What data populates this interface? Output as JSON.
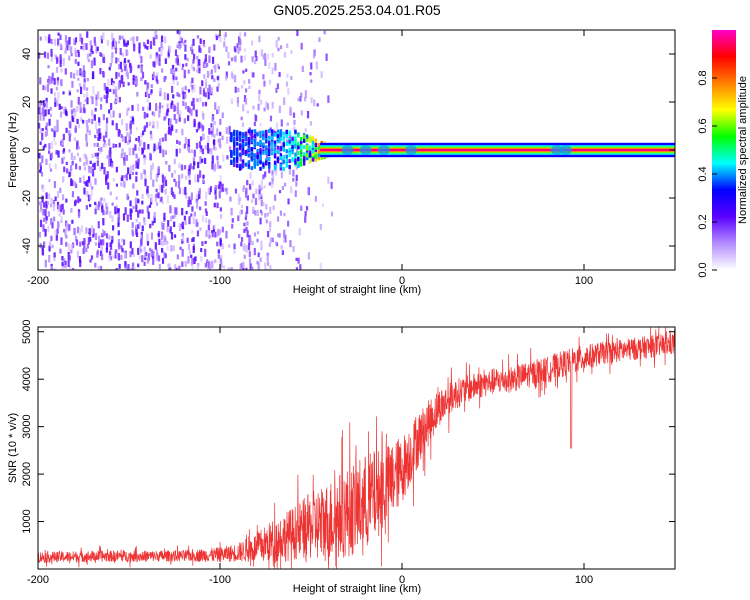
{
  "title": "GN05.2025.253.04.01.R05",
  "chart_data": [
    {
      "type": "heatmap",
      "name": "spectrogram",
      "xlabel": "Height of straight line (km)",
      "ylabel": "Frequency (Hz)",
      "xlim": [
        -200,
        150
      ],
      "ylim": [
        -50,
        50
      ],
      "x_ticks": [
        -200,
        -100,
        0,
        100
      ],
      "y_ticks": [
        -40,
        -20,
        0,
        20,
        40
      ],
      "colorbar": {
        "label": "Normalized spectral amplitude",
        "range": [
          0,
          1
        ],
        "ticks": [
          0.0,
          0.2,
          0.4,
          0.6,
          0.8
        ],
        "tick_labels": [
          "0.0",
          "0.2",
          "0.4",
          "0.6",
          "0.8"
        ],
        "stops": [
          "#ffffff",
          "#b48cff",
          "#5a00ff",
          "#0000ff",
          "#00ffff",
          "#00ff00",
          "#ffff00",
          "#ff8000",
          "#ff0000",
          "#ff00c8"
        ]
      },
      "description_points": [
        {
          "x": -200,
          "spread_hz": 50,
          "max_amp": 0.2
        },
        {
          "x": -100,
          "spread_hz": 50,
          "max_amp": 0.2
        },
        {
          "x": -95,
          "spread_hz": 8,
          "max_amp": 0.35
        },
        {
          "x": -60,
          "spread_hz": 8,
          "max_amp": 0.45
        },
        {
          "x": -40,
          "spread_hz": 2,
          "max_amp": 0.9
        },
        {
          "x": 0,
          "spread_hz": 1,
          "max_amp": 1.0
        },
        {
          "x": 150,
          "spread_hz": 1,
          "max_amp": 1.0
        }
      ]
    },
    {
      "type": "line",
      "name": "snr",
      "xlabel": "Height of straight line (km)",
      "ylabel": "SNR (10 * v/v)",
      "xlim": [
        -200,
        150
      ],
      "ylim": [
        0,
        5100
      ],
      "x_ticks": [
        -200,
        -100,
        0,
        100
      ],
      "y_ticks": [
        1000,
        2000,
        3000,
        4000,
        5000
      ],
      "color": "#ee3333",
      "series": [
        {
          "name": "SNR",
          "x": [
            -200,
            -180,
            -160,
            -140,
            -120,
            -100,
            -90,
            -80,
            -70,
            -60,
            -50,
            -40,
            -30,
            -20,
            -10,
            0,
            10,
            20,
            30,
            40,
            50,
            60,
            70,
            80,
            90,
            100,
            110,
            120,
            130,
            140,
            150
          ],
          "values": [
            250,
            260,
            270,
            270,
            280,
            300,
            350,
            450,
            600,
            750,
            900,
            1000,
            1200,
            1400,
            1700,
            2100,
            2800,
            3400,
            3700,
            3850,
            3950,
            4000,
            4100,
            4200,
            4350,
            4450,
            4550,
            4600,
            4650,
            4700,
            4750
          ],
          "noise": [
            150,
            150,
            150,
            150,
            150,
            200,
            250,
            400,
            600,
            700,
            900,
            1100,
            1200,
            1300,
            1100,
            900,
            700,
            500,
            400,
            350,
            350,
            350,
            350,
            350,
            350,
            350,
            300,
            300,
            300,
            300,
            300
          ]
        }
      ],
      "annotations": [
        {
          "x": 93,
          "y": 2550,
          "text": ""
        }
      ]
    }
  ]
}
